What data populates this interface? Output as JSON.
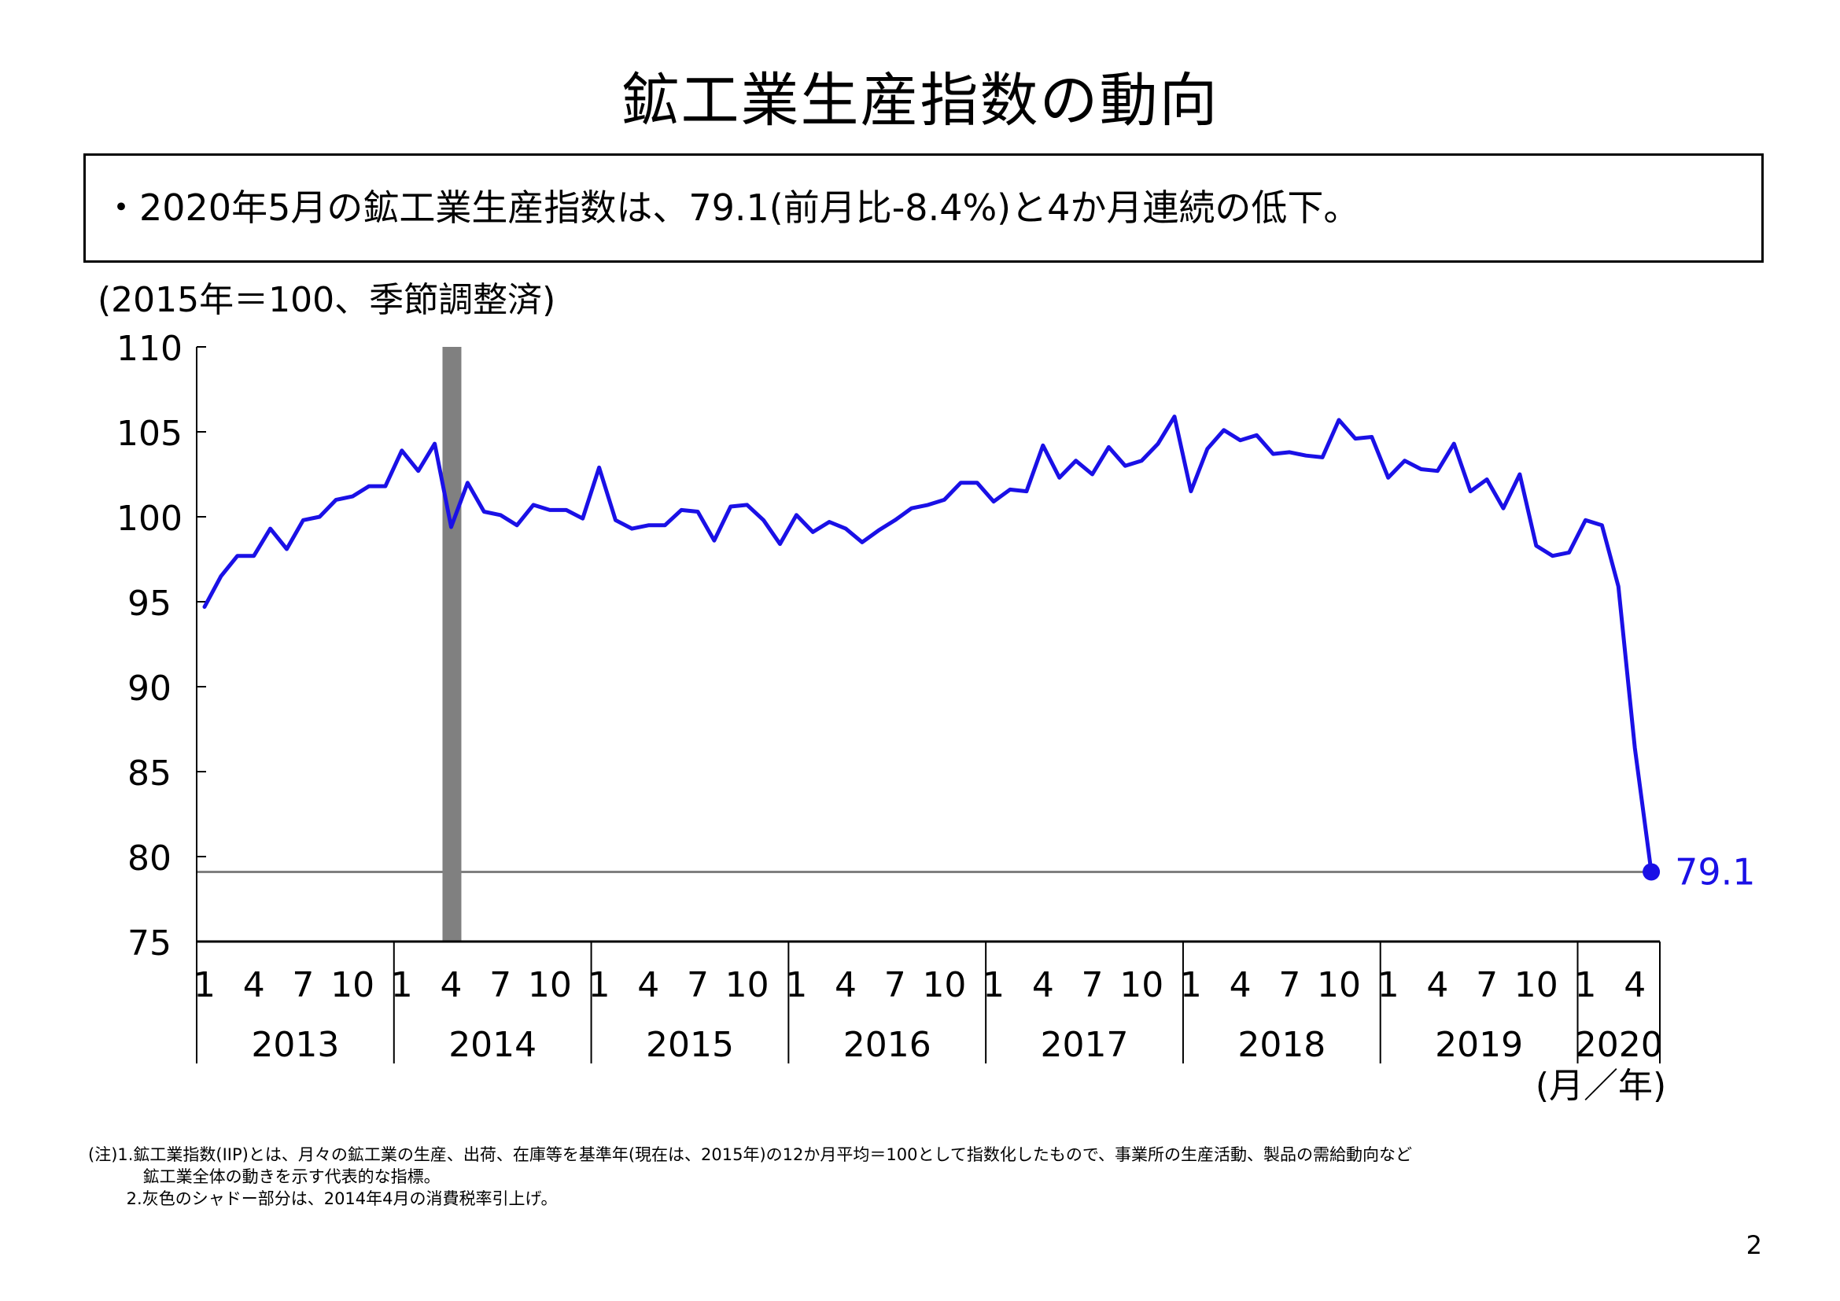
{
  "page": {
    "title": "鉱工業生産指数の動向",
    "summary": "・2020年5月の鉱工業生産指数は、79.1(前月比-8.4%)と4か月連続の低下。",
    "unit_label": "(2015年＝100、季節調整済)",
    "notes": [
      "(注)1.鉱工業指数(IIP)とは、月々の鉱工業の生産、出荷、在庫等を基準年(現在は、2015年)の12か月平均＝100として指数化したもので、事業所の生産活動、製品の需給動向など",
      "　　　 鉱工業全体の動きを示す代表的な指標。",
      "　　 2.灰色のシャドー部分は、2014年4月の消費税率引上げ。"
    ],
    "page_number": "2"
  },
  "chart_data": {
    "type": "line",
    "title": "",
    "xlabel": "(月／年)",
    "ylabel": "",
    "ylim": [
      75,
      110
    ],
    "yticks": [
      "75",
      "80",
      "85",
      "90",
      "95",
      "100",
      "105",
      "110"
    ],
    "start": "2013-01",
    "end": "2020-05",
    "month_tick_labels": [
      "1",
      "4",
      "7",
      "10"
    ],
    "year_labels": [
      "2013",
      "2014",
      "2015",
      "2016",
      "2017",
      "2018",
      "2019",
      "2020"
    ],
    "shaded_period": "2014-04",
    "reference_line": 79.1,
    "last_value_label": "79.1",
    "colors": {
      "line": "#1a10e6",
      "shade": "#808080",
      "reference": "#808080",
      "axis": "#000000"
    },
    "series": [
      {
        "values": [
          94.7,
          96.5,
          97.7,
          97.7,
          99.3,
          98.1,
          99.8,
          100.0,
          101.0,
          101.2,
          101.8,
          101.8,
          103.9,
          102.7,
          104.3,
          99.4,
          102.0,
          100.3,
          100.1,
          99.5,
          100.7,
          100.4,
          100.4,
          99.9,
          102.9,
          99.8,
          99.3,
          99.5,
          99.5,
          100.4,
          100.3,
          98.6,
          100.6,
          100.7,
          99.8,
          98.4,
          100.1,
          99.1,
          99.7,
          99.3,
          98.5,
          99.2,
          99.8,
          100.5,
          100.7,
          101.0,
          102.0,
          102.0,
          100.9,
          101.6,
          101.5,
          104.2,
          102.3,
          103.3,
          102.5,
          104.1,
          103.0,
          103.3,
          104.3,
          105.9,
          101.5,
          104.0,
          105.1,
          104.5,
          104.8,
          103.7,
          103.8,
          103.6,
          103.5,
          105.7,
          104.6,
          104.7,
          102.3,
          103.3,
          102.8,
          102.7,
          104.3,
          101.5,
          102.2,
          100.5,
          102.5,
          98.3,
          97.7,
          97.9,
          99.8,
          99.5,
          95.9,
          86.4,
          79.1
        ]
      }
    ]
  }
}
